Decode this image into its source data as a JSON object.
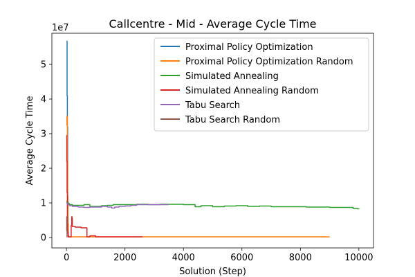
{
  "chart_data": {
    "type": "line",
    "title": "Callcentre - Mid - Average Cycle Time",
    "xlabel": "Solution (Step)",
    "ylabel": "Average Cycle Time",
    "y_offset_label": "1e7",
    "xlim": [
      -500,
      10500
    ],
    "ylim": [
      -0.3,
      5.9
    ],
    "y_scale": 10000000,
    "xticks": [
      "0",
      "2000",
      "4000",
      "6000",
      "8000",
      "10000"
    ],
    "xtick_values": [
      0,
      2000,
      4000,
      6000,
      8000,
      10000
    ],
    "yticks": [
      "0",
      "1",
      "2",
      "3",
      "4",
      "5"
    ],
    "ytick_values": [
      0,
      1,
      2,
      3,
      4,
      5
    ],
    "grid": false,
    "legend_position": "top-right",
    "series": [
      {
        "name": "Proximal Policy Optimization",
        "color": "#1f77b4",
        "step": true,
        "points": [
          [
            0,
            5.67
          ],
          [
            10,
            5.67
          ],
          [
            20,
            4.1
          ],
          [
            30,
            3.2
          ],
          [
            40,
            1.1
          ],
          [
            50,
            0.2
          ],
          [
            60,
            0.05
          ],
          [
            70,
            0.02
          ],
          [
            80,
            0.02
          ]
        ]
      },
      {
        "name": "Proximal Policy Optimization Random",
        "color": "#ff7f0e",
        "step": true,
        "points": [
          [
            0,
            3.25
          ],
          [
            15,
            3.5
          ],
          [
            30,
            2.2
          ],
          [
            40,
            1.2
          ],
          [
            50,
            0.4
          ],
          [
            60,
            0.05
          ],
          [
            80,
            0.02
          ],
          [
            200,
            0.02
          ],
          [
            500,
            0.02
          ],
          [
            1000,
            0.02
          ],
          [
            2000,
            0.02
          ],
          [
            4000,
            0.02
          ],
          [
            6000,
            0.02
          ],
          [
            8000,
            0.02
          ],
          [
            9000,
            0.02
          ]
        ]
      },
      {
        "name": "Simulated Annealing",
        "color": "#2ca02c",
        "step": true,
        "points": [
          [
            0,
            1.05
          ],
          [
            20,
            1.02
          ],
          [
            60,
            0.98
          ],
          [
            100,
            0.95
          ],
          [
            200,
            0.93
          ],
          [
            400,
            0.93
          ],
          [
            600,
            0.95
          ],
          [
            800,
            0.9
          ],
          [
            1000,
            0.9
          ],
          [
            1200,
            0.92
          ],
          [
            1400,
            0.93
          ],
          [
            1600,
            0.95
          ],
          [
            2000,
            0.95
          ],
          [
            2400,
            0.96
          ],
          [
            2800,
            0.95
          ],
          [
            3200,
            0.96
          ],
          [
            3600,
            0.96
          ],
          [
            3900,
            0.96
          ],
          [
            4000,
            0.95
          ],
          [
            4400,
            0.89
          ],
          [
            4600,
            0.92
          ],
          [
            5000,
            0.89
          ],
          [
            5400,
            0.91
          ],
          [
            5800,
            0.92
          ],
          [
            6200,
            0.9
          ],
          [
            6600,
            0.91
          ],
          [
            7000,
            0.89
          ],
          [
            7400,
            0.89
          ],
          [
            7800,
            0.89
          ],
          [
            8200,
            0.88
          ],
          [
            8600,
            0.88
          ],
          [
            9000,
            0.87
          ],
          [
            9400,
            0.87
          ],
          [
            9800,
            0.84
          ],
          [
            9950,
            0.83
          ],
          [
            10000,
            0.82
          ]
        ]
      },
      {
        "name": "Simulated Annealing Random",
        "color": "#d62728",
        "step": true,
        "points": [
          [
            0,
            2.95
          ],
          [
            10,
            2.2
          ],
          [
            20,
            1.3
          ],
          [
            30,
            0.6
          ],
          [
            40,
            0.15
          ],
          [
            60,
            0.02
          ],
          [
            150,
            0.02
          ],
          [
            160,
            0.35
          ],
          [
            180,
            0.6
          ],
          [
            190,
            0.55
          ],
          [
            200,
            0.32
          ],
          [
            300,
            0.3
          ],
          [
            500,
            0.28
          ],
          [
            700,
            0.02
          ],
          [
            800,
            0.05
          ],
          [
            1000,
            0.02
          ],
          [
            1500,
            0.02
          ],
          [
            2000,
            0.02
          ],
          [
            2600,
            0.02
          ]
        ]
      },
      {
        "name": "Tabu Search",
        "color": "#9467bd",
        "step": true,
        "points": [
          [
            0,
            1.0
          ],
          [
            20,
            0.98
          ],
          [
            50,
            0.95
          ],
          [
            100,
            0.92
          ],
          [
            200,
            0.9
          ],
          [
            400,
            0.88
          ],
          [
            600,
            0.87
          ],
          [
            800,
            0.88
          ],
          [
            1000,
            0.88
          ],
          [
            1200,
            0.9
          ],
          [
            1400,
            0.88
          ],
          [
            1550,
            0.85
          ],
          [
            1650,
            0.88
          ],
          [
            1800,
            0.9
          ],
          [
            2000,
            0.91
          ],
          [
            2200,
            0.93
          ],
          [
            2400,
            0.95
          ],
          [
            3000,
            0.95
          ],
          [
            3500,
            0.95
          ]
        ]
      },
      {
        "name": "Tabu Search Random",
        "color": "#8c564b",
        "step": true,
        "points": [
          [
            0,
            0.6
          ],
          [
            10,
            0.2
          ],
          [
            20,
            0.02
          ],
          [
            30,
            0.02
          ]
        ]
      }
    ]
  }
}
